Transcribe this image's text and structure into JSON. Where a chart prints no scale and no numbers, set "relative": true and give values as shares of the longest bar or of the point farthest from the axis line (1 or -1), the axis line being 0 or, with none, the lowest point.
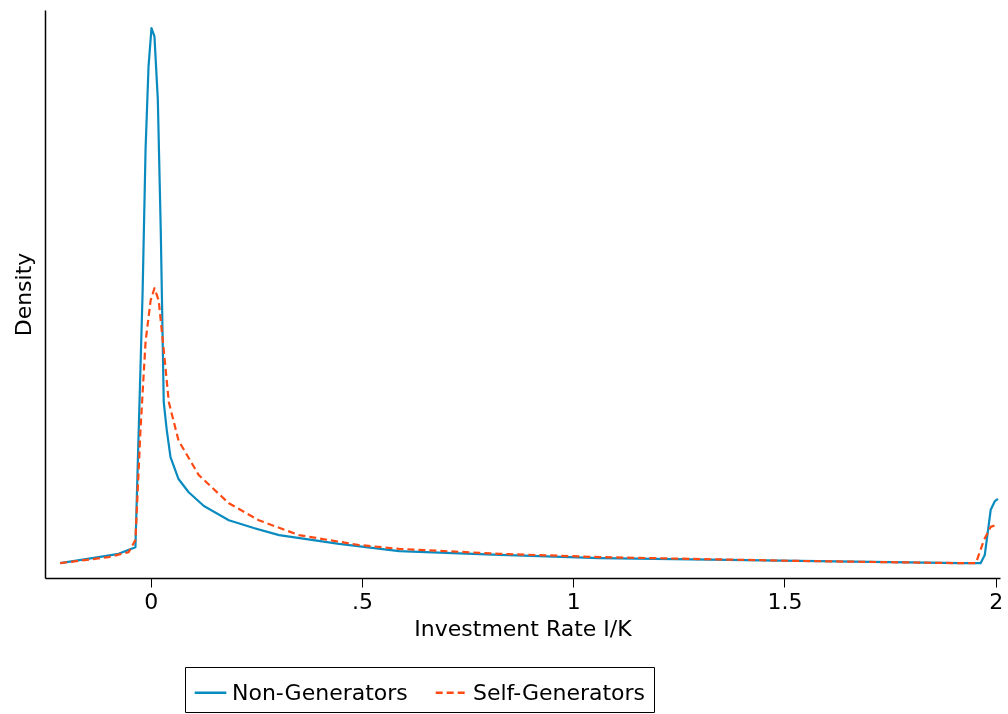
{
  "chart_data": {
    "type": "line",
    "relative": true,
    "xlabel": "Investment Rate I/K",
    "ylabel": "Density",
    "xlim": [
      -0.25,
      2.01
    ],
    "xticks": [
      0,
      {
        "value": 0.5,
        "label": ".5"
      },
      1,
      {
        "value": 1.5,
        "label": "1.5"
      },
      2
    ],
    "legend": "bottom",
    "grid": false,
    "series": [
      {
        "name": "Non-Generators",
        "color": "#0a8bbf",
        "line_style": "solid",
        "x": [
          -0.214,
          -0.123,
          -0.076,
          -0.036,
          -0.019,
          -0.012,
          -0.005,
          0.002,
          0.009,
          0.017,
          0.024,
          0.031,
          0.038,
          0.047,
          0.066,
          0.09,
          0.126,
          0.185,
          0.244,
          0.304,
          0.446,
          0.588,
          0.826,
          1.063,
          1.537,
          1.917,
          1.964,
          1.974,
          1.988,
          1.998,
          2.005
        ],
        "values": [
          0.027,
          0.038,
          0.044,
          0.056,
          0.52,
          0.78,
          0.93,
          1,
          0.985,
          0.87,
          0.63,
          0.32,
          0.27,
          0.22,
          0.18,
          0.156,
          0.131,
          0.105,
          0.091,
          0.078,
          0.062,
          0.049,
          0.042,
          0.036,
          0.031,
          0.027,
          0.027,
          0.042,
          0.124,
          0.14,
          0.144
        ]
      },
      {
        "name": "Self-Generators",
        "color": "#ff4a14",
        "line_style": "dashed",
        "x": [
          -0.214,
          -0.1,
          -0.052,
          -0.036,
          -0.024,
          -0.012,
          0,
          0.009,
          0.019,
          0.031,
          0.043,
          0.066,
          0.114,
          0.185,
          0.256,
          0.351,
          0.493,
          0.588,
          0.826,
          1.063,
          1.537,
          1.917,
          1.953,
          1.972,
          1.988,
          2.005
        ],
        "values": [
          0.027,
          0.038,
          0.047,
          0.069,
          0.27,
          0.43,
          0.505,
          0.527,
          0.505,
          0.415,
          0.32,
          0.25,
          0.187,
          0.136,
          0.105,
          0.078,
          0.06,
          0.053,
          0.044,
          0.038,
          0.031,
          0.027,
          0.027,
          0.069,
          0.093,
          0.098
        ]
      }
    ]
  }
}
